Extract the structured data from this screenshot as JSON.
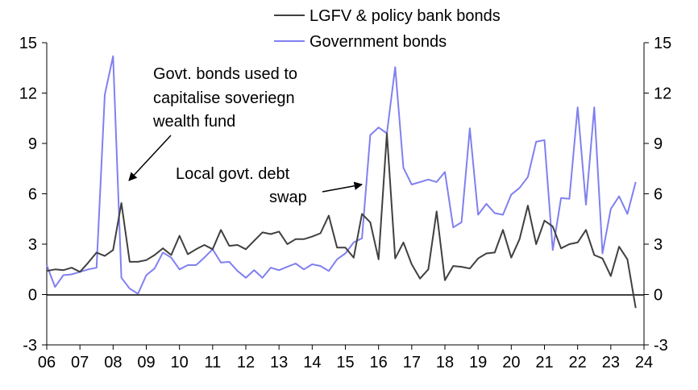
{
  "chart_data": {
    "type": "line",
    "title": "",
    "xlabel": "",
    "ylabel": "",
    "xlim": [
      2006,
      2024
    ],
    "ylim": [
      -3,
      15
    ],
    "y_ticks": [
      -3,
      0,
      3,
      6,
      9,
      12,
      15
    ],
    "y_tick_labels": [
      "-3",
      "0",
      "3",
      "6",
      "9",
      "12",
      "15"
    ],
    "x_ticks": [
      2006,
      2007,
      2008,
      2009,
      2010,
      2011,
      2012,
      2013,
      2014,
      2015,
      2016,
      2017,
      2018,
      2019,
      2020,
      2021,
      2022,
      2023,
      2024
    ],
    "x_tick_labels": [
      "06",
      "07",
      "08",
      "09",
      "10",
      "11",
      "12",
      "13",
      "14",
      "15",
      "16",
      "17",
      "18",
      "19",
      "20",
      "21",
      "22",
      "23",
      "24"
    ],
    "dual_axis": true,
    "grid": false,
    "legend_position": "top-center",
    "zero_line": true,
    "series": [
      {
        "name": "LGFV & policy bank bonds",
        "color": "#404040",
        "x": [
          2006.0,
          2006.25,
          2006.5,
          2006.75,
          2007.0,
          2007.25,
          2007.5,
          2007.75,
          2008.0,
          2008.25,
          2008.5,
          2008.75,
          2009.0,
          2009.25,
          2009.5,
          2009.75,
          2010.0,
          2010.25,
          2010.5,
          2010.75,
          2011.0,
          2011.25,
          2011.5,
          2011.75,
          2012.0,
          2012.25,
          2012.5,
          2012.75,
          2013.0,
          2013.25,
          2013.5,
          2013.75,
          2014.0,
          2014.25,
          2014.5,
          2014.75,
          2015.0,
          2015.25,
          2015.5,
          2015.75,
          2016.0,
          2016.25,
          2016.5,
          2016.75,
          2017.0,
          2017.25,
          2017.5,
          2017.75,
          2018.0,
          2018.25,
          2018.5,
          2018.75,
          2019.0,
          2019.25,
          2019.5,
          2019.75,
          2020.0,
          2020.25,
          2020.5,
          2020.75,
          2021.0,
          2021.25,
          2021.5,
          2021.75,
          2022.0,
          2022.25,
          2022.5,
          2022.75,
          2023.0,
          2023.25,
          2023.5,
          2023.75
        ],
        "y": [
          1.4,
          1.5,
          1.45,
          1.6,
          1.35,
          1.9,
          2.5,
          2.3,
          2.65,
          5.45,
          1.95,
          1.95,
          2.05,
          2.35,
          2.75,
          2.35,
          3.5,
          2.4,
          2.7,
          2.95,
          2.7,
          3.85,
          2.9,
          2.95,
          2.7,
          3.2,
          3.7,
          3.6,
          3.75,
          3.0,
          3.3,
          3.3,
          3.45,
          3.65,
          4.7,
          2.8,
          2.8,
          2.2,
          4.8,
          4.3,
          2.1,
          9.6,
          2.15,
          3.1,
          1.8,
          0.95,
          1.5,
          4.95,
          0.85,
          1.7,
          1.65,
          1.55,
          2.15,
          2.45,
          2.5,
          3.85,
          2.2,
          3.3,
          5.3,
          3.0,
          4.4,
          4.05,
          2.75,
          3.0,
          3.1,
          3.85,
          2.35,
          2.15,
          1.1,
          2.85,
          2.1,
          -0.8
        ]
      },
      {
        "name": "Government bonds",
        "color": "#8080f0",
        "x": [
          2006.0,
          2006.25,
          2006.5,
          2006.75,
          2007.0,
          2007.25,
          2007.5,
          2007.75,
          2008.0,
          2008.25,
          2008.5,
          2008.75,
          2009.0,
          2009.25,
          2009.5,
          2009.75,
          2010.0,
          2010.25,
          2010.5,
          2010.75,
          2011.0,
          2011.25,
          2011.5,
          2011.75,
          2012.0,
          2012.25,
          2012.5,
          2012.75,
          2013.0,
          2013.25,
          2013.5,
          2013.75,
          2014.0,
          2014.25,
          2014.5,
          2014.75,
          2015.0,
          2015.25,
          2015.5,
          2015.75,
          2016.0,
          2016.25,
          2016.5,
          2016.75,
          2017.0,
          2017.25,
          2017.5,
          2017.75,
          2018.0,
          2018.25,
          2018.5,
          2018.75,
          2019.0,
          2019.25,
          2019.5,
          2019.75,
          2020.0,
          2020.25,
          2020.5,
          2020.75,
          2021.0,
          2021.25,
          2021.5,
          2021.75,
          2022.0,
          2022.25,
          2022.5,
          2022.75,
          2023.0,
          2023.25,
          2023.5,
          2023.75
        ],
        "y": [
          1.75,
          0.45,
          1.15,
          1.2,
          1.35,
          1.5,
          1.6,
          11.9,
          14.2,
          1.0,
          0.35,
          0.05,
          1.15,
          1.55,
          2.5,
          2.2,
          1.5,
          1.75,
          1.75,
          2.2,
          2.7,
          1.9,
          1.95,
          1.4,
          1.0,
          1.45,
          1.0,
          1.6,
          1.45,
          1.65,
          1.85,
          1.5,
          1.8,
          1.7,
          1.4,
          2.1,
          2.45,
          3.1,
          3.35,
          9.5,
          9.95,
          9.6,
          13.55,
          7.55,
          6.55,
          6.7,
          6.85,
          6.7,
          7.3,
          4.0,
          4.3,
          9.9,
          4.75,
          5.4,
          4.85,
          4.75,
          5.95,
          6.35,
          7.0,
          9.1,
          9.2,
          2.65,
          5.75,
          5.7,
          11.15,
          5.35,
          11.15,
          2.45,
          5.1,
          5.85,
          4.8,
          6.7
        ]
      }
    ],
    "annotations": [
      {
        "lines": [
          "Govt. bonds used to",
          "capitalise soveriegn",
          "wealth fund"
        ],
        "arrow_target": [
          2008.3,
          6.6
        ]
      },
      {
        "lines": [
          "Local govt. debt",
          "swap"
        ],
        "arrow_target": [
          2015.5,
          6.6
        ]
      }
    ]
  }
}
